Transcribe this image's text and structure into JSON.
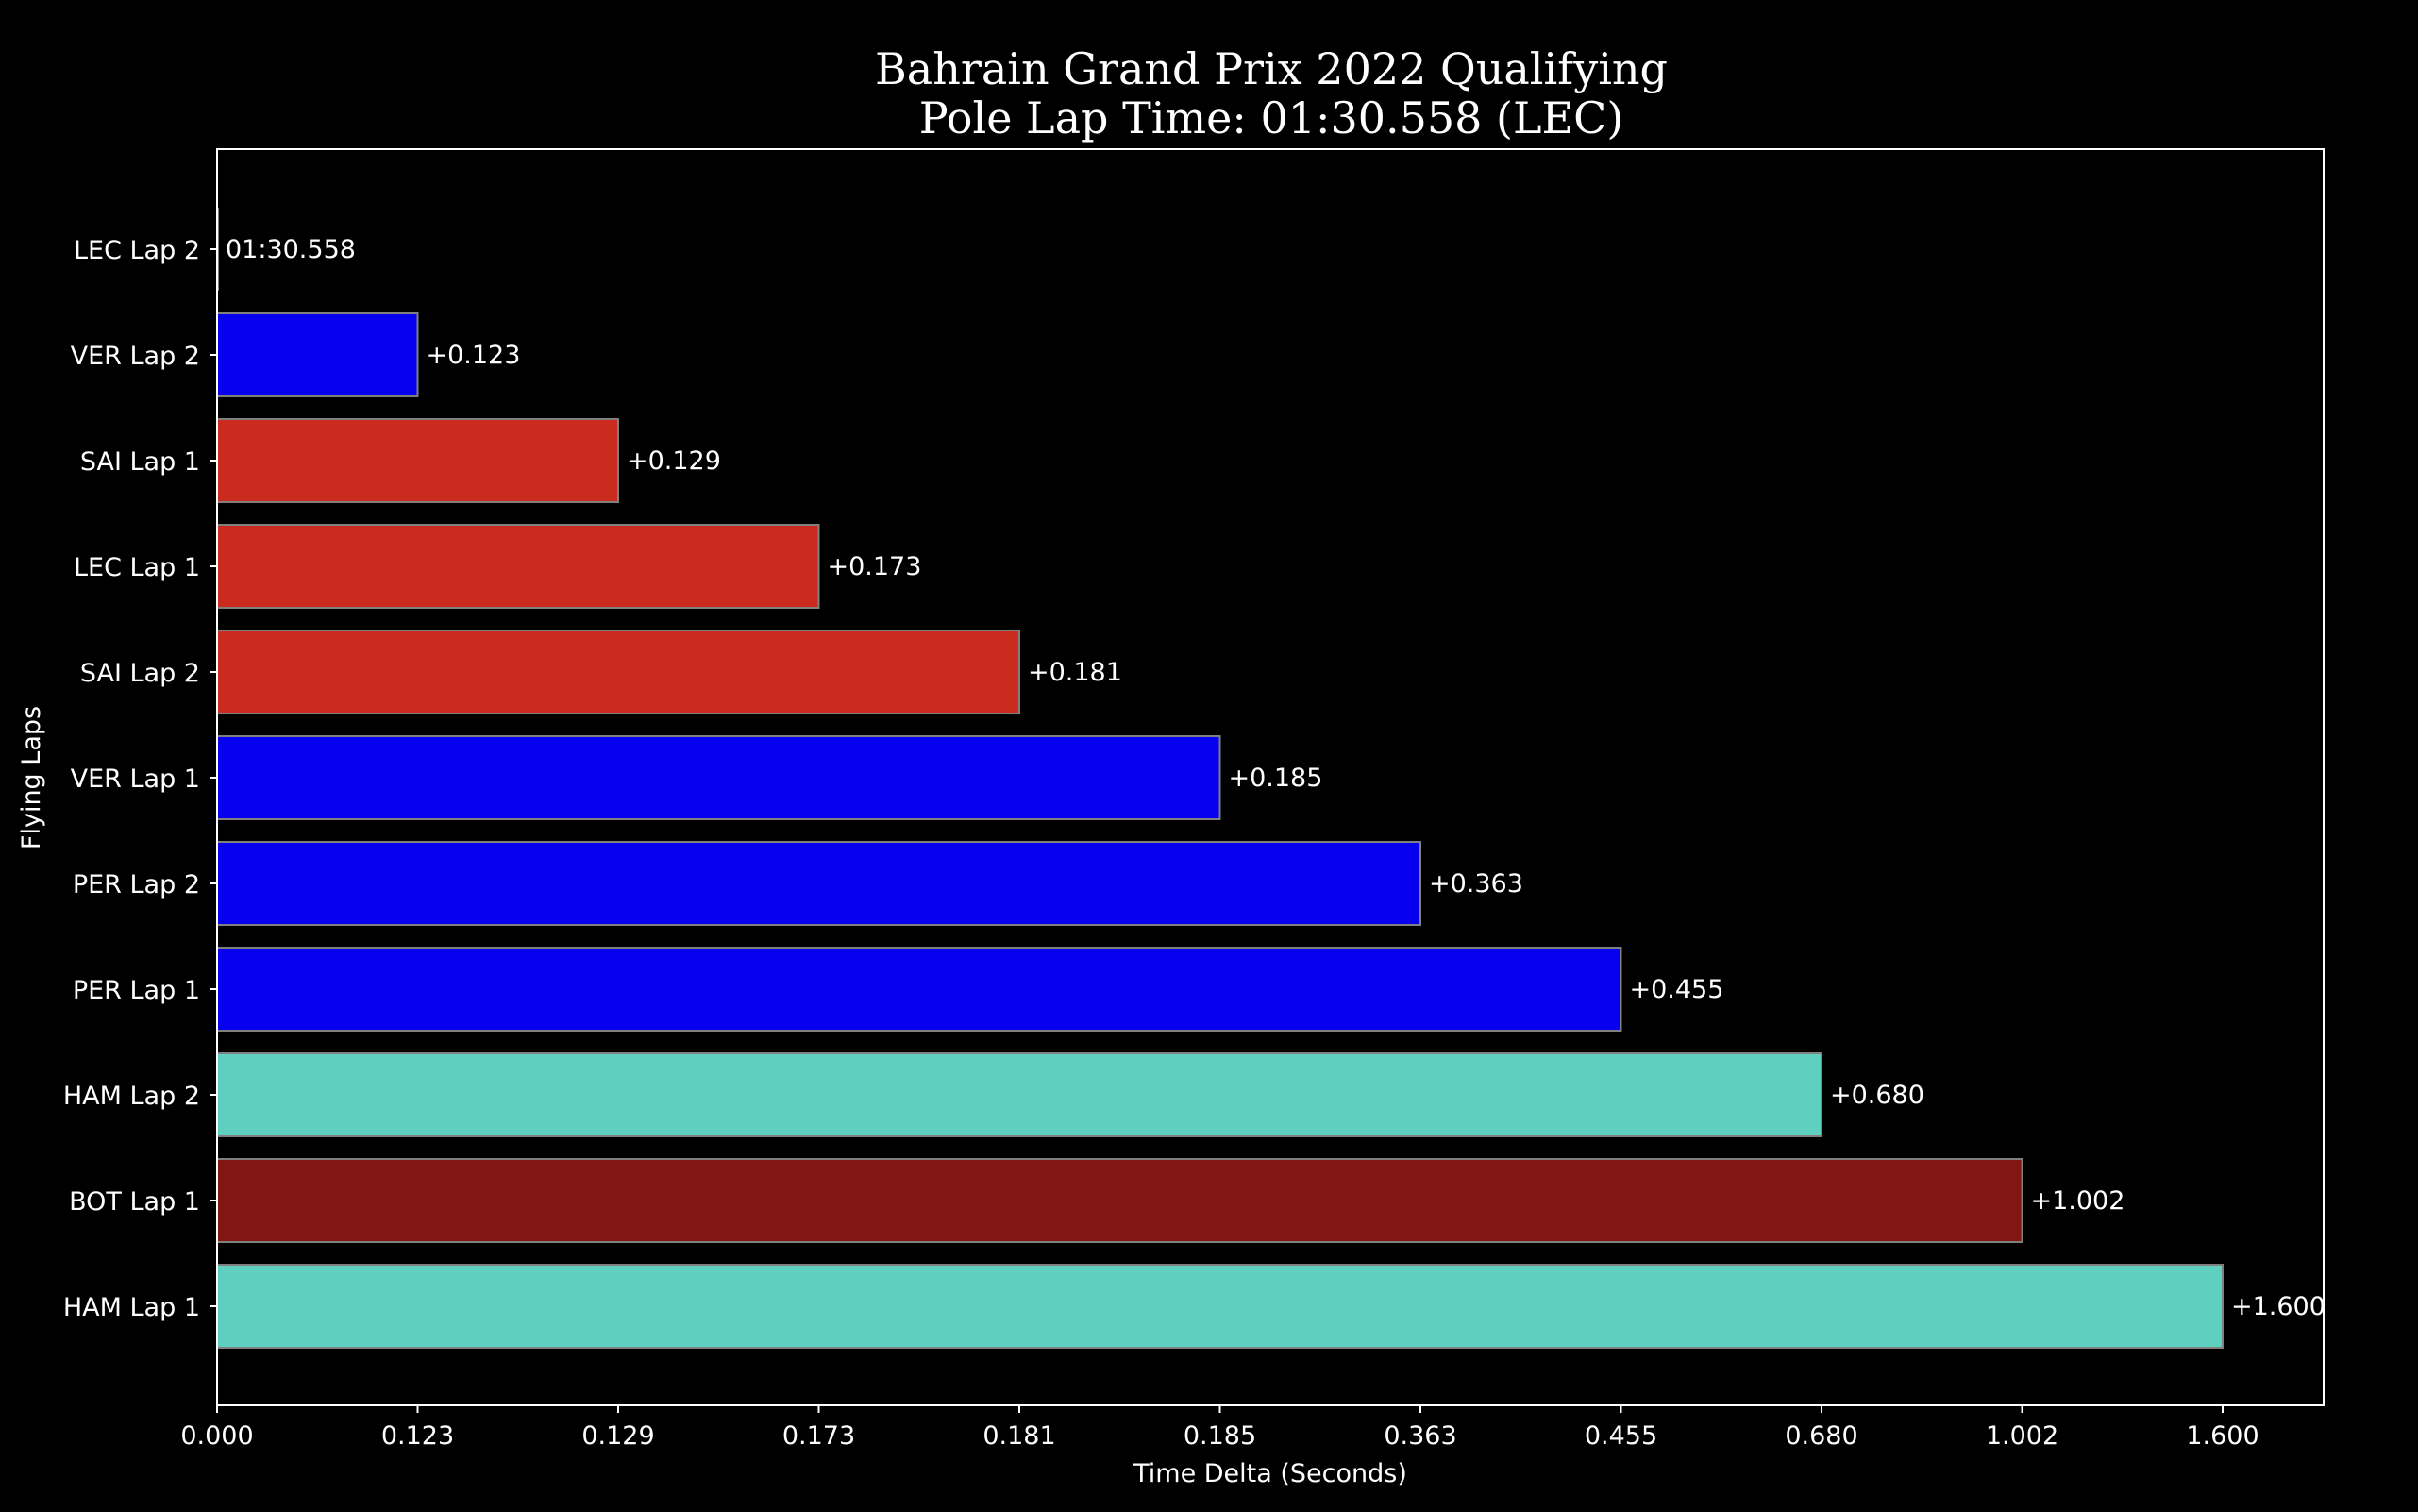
{
  "chart_data": {
    "type": "bar",
    "orientation": "horizontal",
    "title": "Bahrain Grand Prix 2022 Qualifying",
    "subtitle": "Pole Lap Time: 01:30.558 (LEC)",
    "xlabel": "Time Delta (Seconds)",
    "ylabel": "Flying Laps",
    "grid": false,
    "x_tick_labels": [
      "0.000",
      "0.123",
      "0.129",
      "0.173",
      "0.181",
      "0.185",
      "0.363",
      "0.455",
      "0.680",
      "1.002",
      "1.600"
    ],
    "categories": [
      "LEC Lap 2",
      "VER Lap 2",
      "SAI Lap 1",
      "LEC Lap 1",
      "SAI Lap 2",
      "VER Lap 1",
      "PER Lap 2",
      "PER Lap 1",
      "HAM Lap 2",
      "BOT Lap 1",
      "HAM Lap 1"
    ],
    "values": [
      0.0,
      0.123,
      0.129,
      0.173,
      0.181,
      0.185,
      0.363,
      0.455,
      0.68,
      1.002,
      1.6
    ],
    "labels": [
      "01:30.558",
      "+0.123",
      "+0.129",
      "+0.173",
      "+0.181",
      "+0.185",
      "+0.363",
      "+0.455",
      "+0.680",
      "+1.002",
      "+1.600"
    ],
    "colors": [
      "#ed1c24",
      "#0600ef",
      "#cb2a1f",
      "#cb2a1f",
      "#cb2a1f",
      "#0600ef",
      "#0600ef",
      "#0600ef",
      "#5fd0c0",
      "#801712",
      "#5fd0c0"
    ],
    "bar_edge_color": "#808080",
    "background_color": "#000000",
    "text_color": "#ffffff"
  }
}
